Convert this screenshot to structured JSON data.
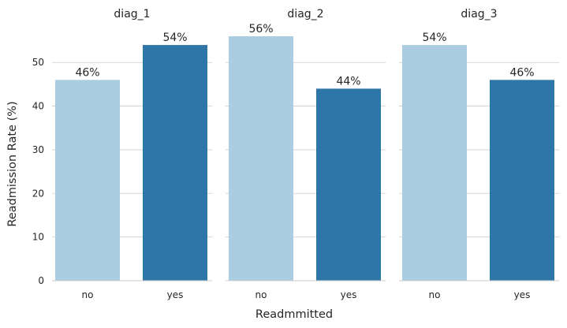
{
  "chart_data": {
    "type": "bar",
    "xlabel": "Readmmitted",
    "ylabel": "Readmission Rate (%)",
    "ylim": [
      0,
      56
    ],
    "yticks": [
      0,
      10,
      20,
      30,
      40,
      50
    ],
    "categories": [
      "no",
      "yes"
    ],
    "grid": "horizontal",
    "colors": [
      "#abcde1",
      "#2f76a8"
    ],
    "panels": [
      {
        "title": "diag_1",
        "values": [
          46,
          54
        ],
        "labels": [
          "46%",
          "54%"
        ]
      },
      {
        "title": "diag_2",
        "values": [
          56,
          44
        ],
        "labels": [
          "56%",
          "44%"
        ]
      },
      {
        "title": "diag_3",
        "values": [
          54,
          46
        ],
        "labels": [
          "54%",
          "46%"
        ]
      }
    ]
  }
}
